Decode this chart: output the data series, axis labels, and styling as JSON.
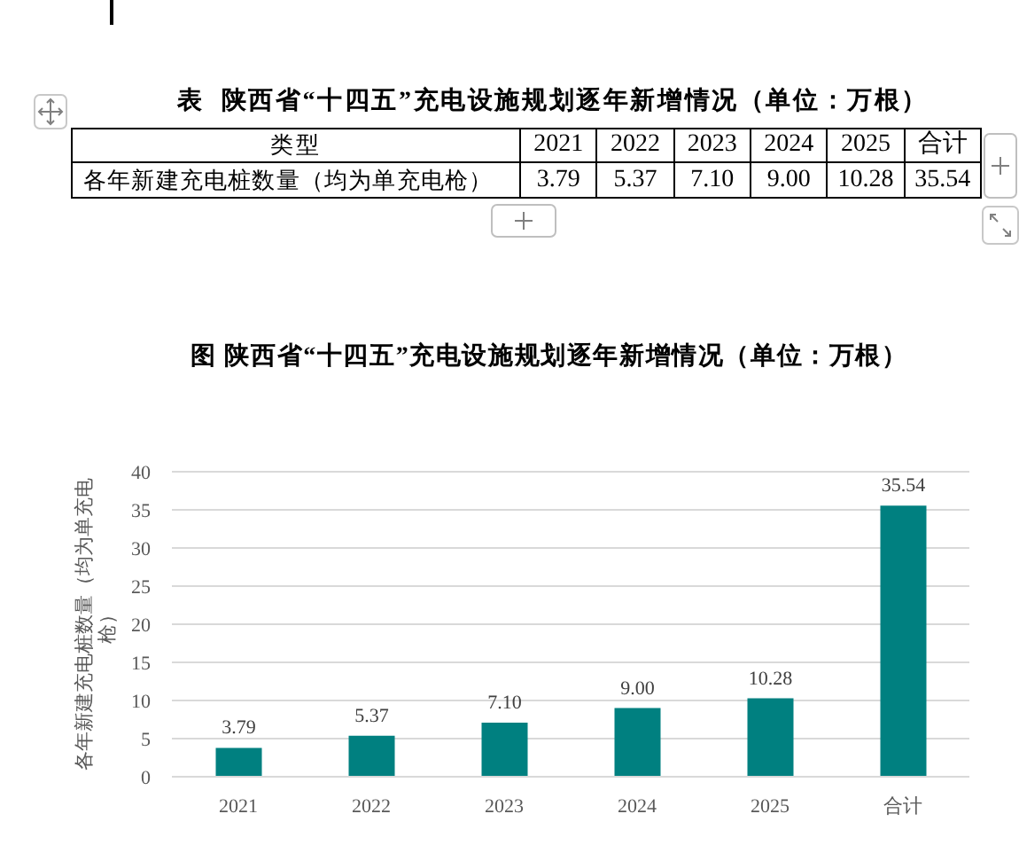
{
  "chart_data": {
    "type": "bar",
    "title": "图 陕西省“十四五”充电设施规划逐年新增情况（单位：万根）",
    "annotations": [
      "表  陕西省“十四五”充电设施规划逐年新增情况（单位：万根）"
    ],
    "legend_title": "类型",
    "ylabel": "各年新建充电桩数量（均为单充电枪）",
    "categories": [
      "2021",
      "2022",
      "2023",
      "2024",
      "2025",
      "合计"
    ],
    "series": [
      {
        "name": "各年新建充电桩数量（均为单充电枪）",
        "color": "#008080",
        "values": [
          3.79,
          5.37,
          7.1,
          9.0,
          10.28,
          35.54
        ],
        "value_labels": [
          "3.79",
          "5.37",
          "7.10",
          "9.00",
          "10.28",
          "35.54"
        ]
      }
    ],
    "ylim": [
      0,
      40
    ],
    "yticks": [
      0,
      5,
      10,
      15,
      20,
      25,
      30,
      35,
      40
    ],
    "grid": "y"
  }
}
